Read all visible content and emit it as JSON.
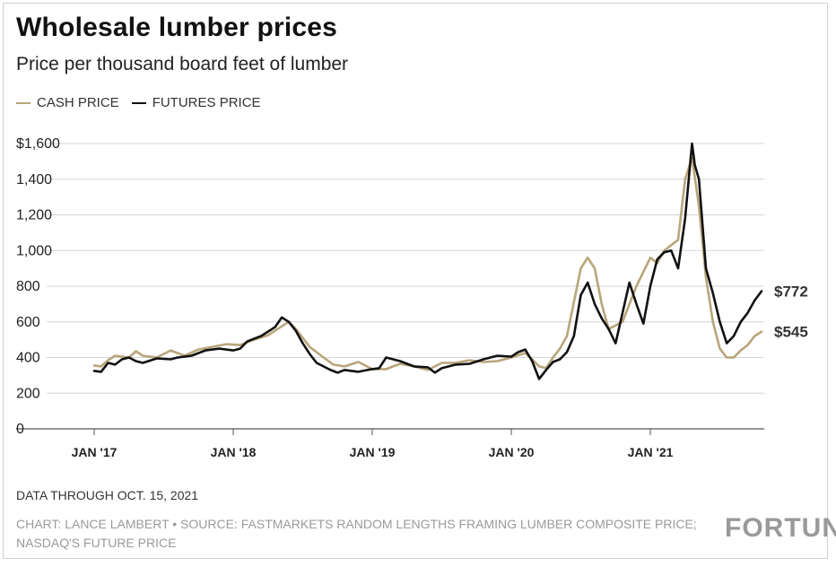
{
  "chart_data": {
    "type": "line",
    "title": "Wholesale lumber prices",
    "subtitle": "Price per thousand board feet of lumber",
    "y_tick_labels": [
      "$1,600",
      "1,400",
      "1,200",
      "1,000",
      "800",
      "600",
      "400",
      "200",
      "0"
    ],
    "y_ticks": [
      1600,
      1400,
      1200,
      1000,
      800,
      600,
      400,
      200,
      0
    ],
    "ylim": [
      0,
      1600
    ],
    "x_tick_labels": [
      "JAN '17",
      "JAN '18",
      "JAN '19",
      "JAN '20",
      "JAN '21"
    ],
    "x_ticks": [
      2017,
      2018,
      2019,
      2020,
      2021
    ],
    "xlim": [
      2016.7,
      2021.9
    ],
    "grid": true,
    "legend_position": "top-left",
    "series": [
      {
        "name": "CASH PRICE",
        "color": "#b9a57a",
        "x": [
          2017.0,
          2017.05,
          2017.1,
          2017.15,
          2017.25,
          2017.3,
          2017.35,
          2017.45,
          2017.55,
          2017.65,
          2017.75,
          2017.85,
          2017.95,
          2018.05,
          2018.15,
          2018.25,
          2018.35,
          2018.4,
          2018.45,
          2018.5,
          2018.55,
          2018.65,
          2018.72,
          2018.8,
          2018.9,
          2019.0,
          2019.1,
          2019.2,
          2019.3,
          2019.4,
          2019.5,
          2019.6,
          2019.7,
          2019.8,
          2019.9,
          2020.0,
          2020.1,
          2020.15,
          2020.2,
          2020.25,
          2020.3,
          2020.35,
          2020.4,
          2020.5,
          2020.55,
          2020.6,
          2020.65,
          2020.7,
          2020.8,
          2020.9,
          2021.0,
          2021.05,
          2021.1,
          2021.2,
          2021.25,
          2021.3,
          2021.35,
          2021.4,
          2021.45,
          2021.5,
          2021.55,
          2021.6,
          2021.65,
          2021.7,
          2021.75,
          2021.8
        ],
        "y": [
          355,
          350,
          385,
          410,
          400,
          435,
          410,
          400,
          440,
          410,
          445,
          460,
          475,
          470,
          500,
          525,
          575,
          600,
          560,
          510,
          460,
          400,
          360,
          350,
          375,
          335,
          335,
          365,
          350,
          330,
          370,
          370,
          385,
          375,
          380,
          400,
          425,
          390,
          350,
          340,
          400,
          450,
          520,
          900,
          960,
          900,
          700,
          560,
          600,
          800,
          960,
          930,
          1000,
          1060,
          1400,
          1520,
          1250,
          850,
          600,
          450,
          400,
          400,
          440,
          470,
          520,
          545
        ]
      },
      {
        "name": "FUTURES PRICE",
        "color": "#111111",
        "x": [
          2017.0,
          2017.05,
          2017.1,
          2017.15,
          2017.2,
          2017.25,
          2017.3,
          2017.35,
          2017.45,
          2017.55,
          2017.6,
          2017.7,
          2017.8,
          2017.9,
          2018.0,
          2018.05,
          2018.1,
          2018.2,
          2018.3,
          2018.35,
          2018.4,
          2018.45,
          2018.5,
          2018.55,
          2018.6,
          2018.7,
          2018.75,
          2018.8,
          2018.9,
          2019.0,
          2019.05,
          2019.1,
          2019.2,
          2019.3,
          2019.4,
          2019.45,
          2019.5,
          2019.6,
          2019.7,
          2019.8,
          2019.9,
          2020.0,
          2020.05,
          2020.1,
          2020.15,
          2020.2,
          2020.25,
          2020.3,
          2020.35,
          2020.4,
          2020.45,
          2020.5,
          2020.55,
          2020.6,
          2020.65,
          2020.7,
          2020.75,
          2020.8,
          2020.85,
          2020.9,
          2020.95,
          2021.0,
          2021.05,
          2021.1,
          2021.15,
          2021.2,
          2021.25,
          2021.3,
          2021.32,
          2021.35,
          2021.4,
          2021.45,
          2021.5,
          2021.55,
          2021.6,
          2021.65,
          2021.7,
          2021.75,
          2021.8
        ],
        "y": [
          325,
          320,
          370,
          360,
          390,
          400,
          380,
          370,
          395,
          390,
          400,
          410,
          440,
          450,
          440,
          450,
          490,
          520,
          570,
          625,
          600,
          550,
          480,
          420,
          370,
          330,
          315,
          330,
          320,
          335,
          340,
          400,
          380,
          350,
          345,
          315,
          340,
          360,
          365,
          390,
          410,
          405,
          430,
          445,
          380,
          280,
          330,
          375,
          390,
          430,
          520,
          750,
          820,
          700,
          620,
          560,
          480,
          650,
          820,
          700,
          590,
          800,
          950,
          990,
          1000,
          900,
          1180,
          1600,
          1480,
          1400,
          900,
          760,
          600,
          480,
          520,
          600,
          650,
          720,
          772
        ]
      }
    ],
    "annotations": [
      {
        "text": "$772",
        "series": "FUTURES PRICE",
        "x": 2021.8,
        "y": 772
      },
      {
        "text": "$545",
        "series": "CASH PRICE",
        "x": 2021.8,
        "y": 545
      }
    ]
  },
  "footer": {
    "data_through": "DATA THROUGH OCT. 15, 2021",
    "credit": "CHART: LANCE LAMBERT • SOURCE: FASTMARKETS RANDOM LENGTHS FRAMING LUMBER COMPOSITE PRICE; NASDAQ'S FUTURE PRICE",
    "brand": "FORTUNE"
  }
}
